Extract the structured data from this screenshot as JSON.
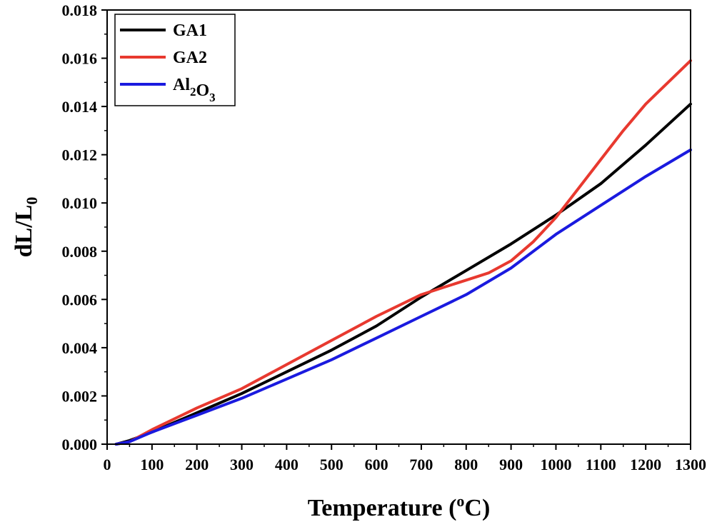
{
  "chart_data": {
    "type": "line",
    "xlabel": "Temperature (",
    "xlabel_sup": "o",
    "xlabel_suffix": "C)",
    "ylabel": "dL/L",
    "ylabel_sub": "0",
    "xlim": [
      0,
      1300
    ],
    "ylim": [
      0,
      0.018
    ],
    "x_ticks": [
      "0",
      "100",
      "200",
      "300",
      "400",
      "500",
      "600",
      "700",
      "800",
      "900",
      "1000",
      "1100",
      "1200",
      "1300"
    ],
    "y_ticks": [
      "0.000",
      "0.002",
      "0.004",
      "0.006",
      "0.008",
      "0.010",
      "0.012",
      "0.014",
      "0.016",
      "0.018"
    ],
    "grid": false,
    "legend_position": "top-left",
    "series": [
      {
        "name": "GA1",
        "name_parts": [
          {
            "text": "GA1",
            "sub": ""
          }
        ],
        "color": "#000000",
        "x": [
          20,
          50,
          100,
          200,
          300,
          400,
          500,
          600,
          700,
          800,
          900,
          1000,
          1100,
          1200,
          1300
        ],
        "y": [
          0.0,
          0.00015,
          0.0005,
          0.0013,
          0.0021,
          0.003,
          0.0039,
          0.0049,
          0.0061,
          0.0072,
          0.0083,
          0.0095,
          0.0108,
          0.0124,
          0.0141
        ]
      },
      {
        "name": "GA2",
        "name_parts": [
          {
            "text": "GA2",
            "sub": ""
          }
        ],
        "color": "#e8392f",
        "x": [
          20,
          50,
          100,
          200,
          300,
          400,
          500,
          600,
          700,
          750,
          800,
          850,
          900,
          950,
          1000,
          1050,
          1100,
          1150,
          1200,
          1300
        ],
        "y": [
          0.0,
          0.0001,
          0.0006,
          0.0015,
          0.0023,
          0.0033,
          0.0043,
          0.0053,
          0.0062,
          0.0065,
          0.0068,
          0.0071,
          0.0076,
          0.0084,
          0.0094,
          0.0106,
          0.0118,
          0.013,
          0.0141,
          0.0159
        ]
      },
      {
        "name": "Al2O3",
        "name_parts": [
          {
            "text": "Al",
            "sub": "2"
          },
          {
            "text": "O",
            "sub": "3"
          }
        ],
        "color": "#1a1adf",
        "x": [
          20,
          50,
          100,
          200,
          300,
          400,
          500,
          600,
          700,
          800,
          900,
          1000,
          1100,
          1200,
          1300
        ],
        "y": [
          0.0,
          0.0001,
          0.0005,
          0.0012,
          0.0019,
          0.0027,
          0.0035,
          0.0044,
          0.0053,
          0.0062,
          0.0073,
          0.0087,
          0.0099,
          0.0111,
          0.0122
        ]
      }
    ]
  }
}
